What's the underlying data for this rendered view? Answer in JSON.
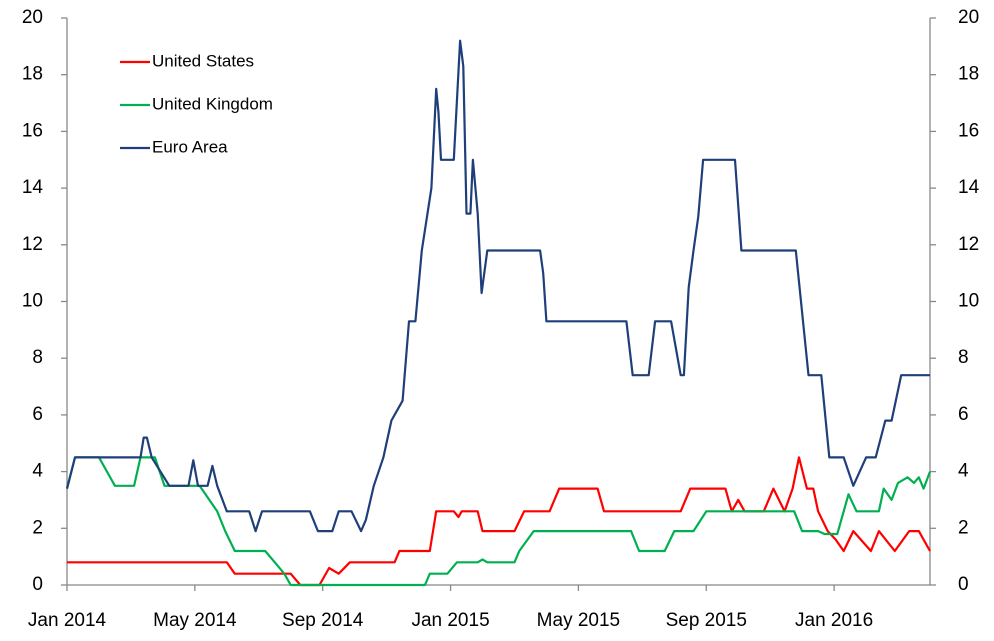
{
  "chart_data": {
    "type": "line",
    "xlim": [
      0,
      27
    ],
    "xticks": [
      {
        "value": 0,
        "label": "Jan 2014"
      },
      {
        "value": 4,
        "label": "May 2014"
      },
      {
        "value": 8,
        "label": "Sep 2014"
      },
      {
        "value": 12,
        "label": "Jan 2015"
      },
      {
        "value": 16,
        "label": "May 2015"
      },
      {
        "value": 20,
        "label": "Sep 2015"
      },
      {
        "value": 24,
        "label": "Jan 2016"
      }
    ],
    "ylim": [
      0,
      20
    ],
    "yticks": [
      0,
      2,
      4,
      6,
      8,
      10,
      12,
      14,
      16,
      18,
      20
    ],
    "y2lim": [
      0,
      20
    ],
    "y2ticks": [
      0,
      2,
      4,
      6,
      8,
      10,
      12,
      14,
      16,
      18,
      20
    ],
    "grid": false,
    "legend": "upper left",
    "series": [
      {
        "name": "United States",
        "color": "#ff0000",
        "x": [
          0,
          5.0,
          5.25,
          7.0,
          7.3,
          7.9,
          8.2,
          8.5,
          8.85,
          10.25,
          10.4,
          11.35,
          11.55,
          12.1,
          12.25,
          12.35,
          12.85,
          13.0,
          14.0,
          14.3,
          15.1,
          15.4,
          16.6,
          16.8,
          19.2,
          19.5,
          20.6,
          20.8,
          21.0,
          21.2,
          21.8,
          22.1,
          22.45,
          22.7,
          22.9,
          23.15,
          23.35,
          23.5,
          23.8,
          24.05,
          24.3,
          24.6,
          25.15,
          25.4,
          25.9,
          26.35,
          26.65,
          27
        ],
        "values": [
          0.8,
          0.8,
          0.4,
          0.4,
          0,
          0,
          0.6,
          0.4,
          0.8,
          0.8,
          1.2,
          1.2,
          2.6,
          2.6,
          2.4,
          2.6,
          2.6,
          1.9,
          1.9,
          2.6,
          2.6,
          3.4,
          3.4,
          2.6,
          2.6,
          3.4,
          3.4,
          2.6,
          3.0,
          2.6,
          2.6,
          3.4,
          2.6,
          3.4,
          4.5,
          3.4,
          3.4,
          2.6,
          1.9,
          1.6,
          1.2,
          1.9,
          1.2,
          1.9,
          1.2,
          1.9,
          1.9,
          1.2
        ]
      },
      {
        "name": "United Kingdom",
        "color": "#00b050",
        "x": [
          0,
          0.25,
          1.0,
          1.5,
          2.1,
          2.3,
          2.75,
          3.05,
          4.15,
          4.7,
          4.95,
          5.25,
          6.2,
          6.5,
          6.8,
          7.0,
          11.2,
          11.35,
          11.9,
          12.2,
          12.85,
          13.0,
          13.15,
          14.0,
          14.15,
          14.6,
          17.65,
          17.9,
          18.7,
          19.0,
          19.6,
          20.0,
          22.75,
          23.0,
          23.5,
          23.7,
          24.1,
          24.3,
          24.45,
          24.7,
          25.4,
          25.55,
          25.8,
          26.0,
          26.3,
          26.5,
          26.65,
          26.8,
          27
        ],
        "values": [
          3.4,
          4.5,
          4.5,
          3.5,
          3.5,
          4.5,
          4.5,
          3.5,
          3.5,
          2.6,
          1.9,
          1.2,
          1.2,
          0.8,
          0.4,
          0,
          0,
          0.4,
          0.4,
          0.8,
          0.8,
          0.9,
          0.8,
          0.8,
          1.2,
          1.9,
          1.9,
          1.2,
          1.2,
          1.9,
          1.9,
          2.6,
          2.6,
          1.9,
          1.9,
          1.8,
          1.8,
          2.6,
          3.2,
          2.6,
          2.6,
          3.4,
          3.0,
          3.6,
          3.8,
          3.6,
          3.8,
          3.4,
          4.0
        ]
      },
      {
        "name": "Euro Area",
        "color": "#1f3f7a",
        "x": [
          0,
          0.25,
          2.3,
          2.4,
          2.5,
          2.65,
          3.2,
          3.8,
          3.95,
          4.1,
          4.4,
          4.55,
          4.7,
          5.0,
          5.7,
          5.9,
          6.1,
          7.6,
          7.85,
          8.3,
          8.5,
          8.9,
          9.2,
          9.35,
          9.6,
          9.9,
          10.15,
          10.5,
          10.7,
          10.9,
          11.1,
          11.4,
          11.55,
          11.62,
          11.7,
          12.1,
          12.3,
          12.4,
          12.5,
          12.62,
          12.7,
          12.85,
          12.97,
          13.15,
          14.8,
          14.9,
          15.0,
          17.5,
          17.7,
          18.2,
          18.4,
          18.9,
          19.2,
          19.3,
          19.45,
          19.6,
          19.75,
          19.9,
          20.9,
          21.1,
          22.8,
          23.2,
          23.6,
          23.85,
          24.3,
          24.6,
          25.0,
          25.3,
          25.6,
          25.8,
          26.1,
          27
        ],
        "values": [
          3.4,
          4.5,
          4.5,
          5.2,
          5.2,
          4.5,
          3.5,
          3.5,
          4.4,
          3.5,
          3.5,
          4.2,
          3.5,
          2.6,
          2.6,
          1.9,
          2.6,
          2.6,
          1.9,
          1.9,
          2.6,
          2.6,
          1.9,
          2.3,
          3.5,
          4.5,
          5.8,
          6.5,
          9.3,
          9.3,
          11.8,
          14.0,
          17.5,
          16.7,
          15.0,
          15.0,
          19.2,
          18.3,
          13.1,
          13.1,
          15.0,
          13.1,
          10.3,
          11.8,
          11.8,
          11.0,
          9.3,
          9.3,
          7.4,
          7.4,
          9.3,
          9.3,
          7.4,
          7.4,
          10.5,
          11.8,
          13.0,
          15.0,
          15.0,
          11.8,
          11.8,
          7.4,
          7.4,
          4.5,
          4.5,
          3.5,
          4.5,
          4.5,
          5.8,
          5.8,
          7.4,
          7.4
        ]
      }
    ]
  }
}
